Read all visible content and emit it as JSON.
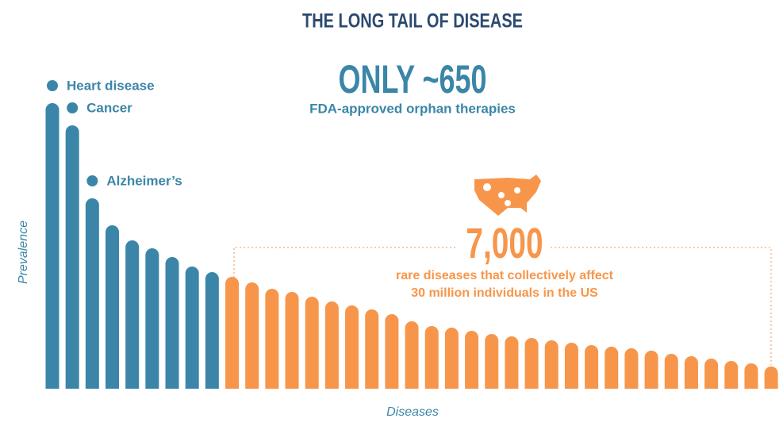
{
  "chart_data": {
    "type": "bar",
    "title": "THE LONG TAIL OF DISEASE",
    "headline": "ONLY ~650",
    "headline_sub": "FDA-approved orphan therapies",
    "callout": "7,000",
    "callout_lines": [
      "rare diseases that collectively affect",
      "30 million individuals in the US"
    ],
    "y_label": "Prevalence",
    "x_label": "Diseases",
    "categories": [
      null,
      null,
      null,
      null,
      null,
      null,
      null,
      null,
      null,
      null,
      null,
      null,
      null,
      null,
      null,
      null,
      null,
      null,
      null,
      null,
      null,
      null,
      null,
      null,
      null,
      null,
      null,
      null,
      null,
      null,
      null,
      null,
      null,
      null,
      null,
      null,
      null
    ],
    "values": [
      360,
      332,
      240,
      206,
      187,
      177,
      166,
      154,
      147,
      141,
      134,
      126,
      122,
      116,
      110,
      105,
      100,
      94,
      85,
      79,
      77,
      73,
      69,
      66,
      64,
      61,
      58,
      55,
      53,
      51,
      48,
      44,
      41,
      38,
      35,
      32,
      28
    ],
    "colors": [
      "#3b86a8",
      "#3b86a8",
      "#3b86a8",
      "#3b86a8",
      "#3b86a8",
      "#3b86a8",
      "#3b86a8",
      "#3b86a8",
      "#3b86a8",
      "#f7964a",
      "#f7964a",
      "#f7964a",
      "#f7964a",
      "#f7964a",
      "#f7964a",
      "#f7964a",
      "#f7964a",
      "#f7964a",
      "#f7964a",
      "#f7964a",
      "#f7964a",
      "#f7964a",
      "#f7964a",
      "#f7964a",
      "#f7964a",
      "#f7964a",
      "#f7964a",
      "#f7964a",
      "#f7964a",
      "#f7964a",
      "#f7964a",
      "#f7964a",
      "#f7964a",
      "#f7964a",
      "#f7964a",
      "#f7964a",
      "#f7964a"
    ],
    "annotations": [
      {
        "text": "Heart disease",
        "index": 0
      },
      {
        "text": "Cancer",
        "index": 1
      },
      {
        "text": "Alzheimer’s",
        "index": 2
      }
    ],
    "ylim": [
      0,
      360
    ]
  }
}
